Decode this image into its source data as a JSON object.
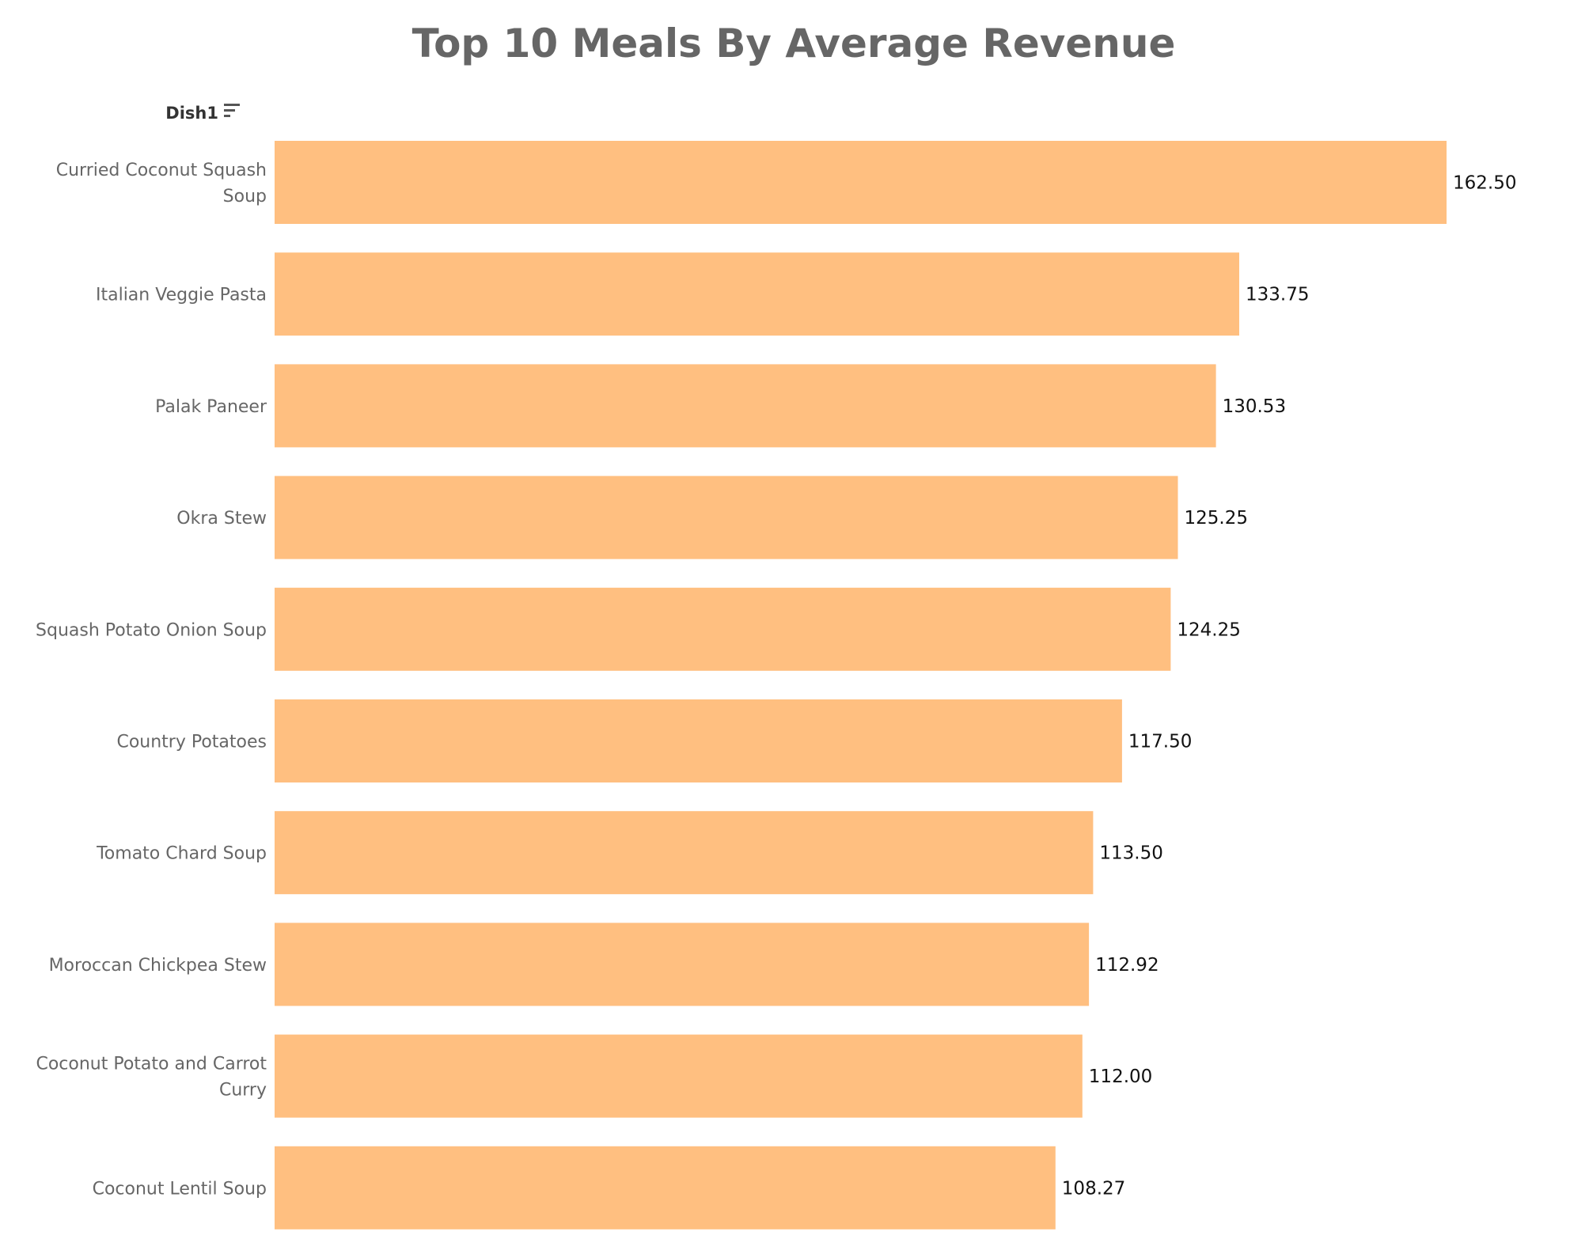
{
  "chart_data": {
    "type": "bar",
    "orientation": "horizontal",
    "title": "Top 10 Meals By Average Revenue",
    "category_axis_header": "Dish1",
    "sort_icon": "sort-descending-icon",
    "bar_color": "#FFBF80",
    "grid": false,
    "legend": "none",
    "categories": [
      "Curried Coconut Squash Soup",
      "Italian Veggie Pasta",
      "Palak Paneer",
      "Okra Stew",
      "Squash Potato Onion Soup",
      "Country Potatoes",
      "Tomato Chard Soup",
      "Moroccan Chickpea Stew",
      "Coconut Potato and Carrot Curry",
      "Coconut Lentil Soup"
    ],
    "category_label_lines": [
      [
        "Curried Coconut Squash",
        "Soup"
      ],
      [
        "Italian Veggie Pasta"
      ],
      [
        "Palak Paneer"
      ],
      [
        "Okra Stew"
      ],
      [
        "Squash Potato Onion Soup"
      ],
      [
        "Country Potatoes"
      ],
      [
        "Tomato Chard Soup"
      ],
      [
        "Moroccan Chickpea Stew"
      ],
      [
        "Coconut Potato and Carrot",
        "Curry"
      ],
      [
        "Coconut Lentil Soup"
      ]
    ],
    "values": [
      162.5,
      133.75,
      130.53,
      125.25,
      124.25,
      117.5,
      113.5,
      112.92,
      112.0,
      108.27
    ],
    "value_labels": [
      "162.50",
      "133.75",
      "130.53",
      "125.25",
      "124.25",
      "117.50",
      "113.50",
      "112.92",
      "112.00",
      "108.27"
    ],
    "xlim": [
      0,
      162.5
    ]
  }
}
